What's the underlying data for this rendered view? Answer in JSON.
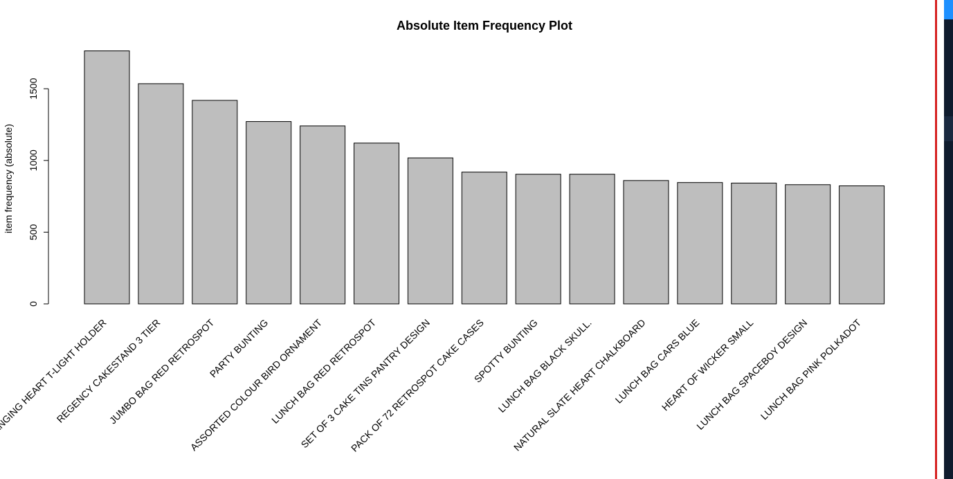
{
  "chart_data": {
    "type": "bar",
    "title": "Absolute Item Frequency Plot",
    "xlabel": "",
    "ylabel": "item frequency (absolute)",
    "ylim": [
      0,
      1750
    ],
    "yticks": [
      0,
      500,
      1000,
      1500
    ],
    "grid": false,
    "categories": [
      "WHITE HANGING HEART T-LIGHT HOLDER",
      "REGENCY CAKESTAND 3 TIER",
      "JUMBO BAG RED RETROSPOT",
      "PARTY BUNTING",
      "ASSORTED COLOUR BIRD ORNAMENT",
      "LUNCH BAG RED RETROSPOT",
      "SET OF 3 CAKE TINS PANTRY DESIGN",
      "PACK OF 72 RETROSPOT CAKE CASES",
      "SPOTTY BUNTING",
      "LUNCH BAG  BLACK SKULL.",
      "NATURAL SLATE HEART CHALKBOARD",
      "LUNCH BAG CARS BLUE",
      "HEART OF WICKER SMALL",
      "LUNCH BAG SPACEBOY DESIGN",
      "LUNCH BAG PINK POLKADOT"
    ],
    "values": [
      1764,
      1535,
      1419,
      1271,
      1241,
      1121,
      1018,
      919,
      904,
      904,
      860,
      846,
      842,
      831,
      823
    ],
    "colors": {
      "bar_fill": "#bebebe",
      "bar_stroke": "#000000"
    }
  },
  "window_chrome": {
    "border_color": "#d62020",
    "panel_color": "#0f1b2d",
    "accent_color": "#1e90ff"
  }
}
